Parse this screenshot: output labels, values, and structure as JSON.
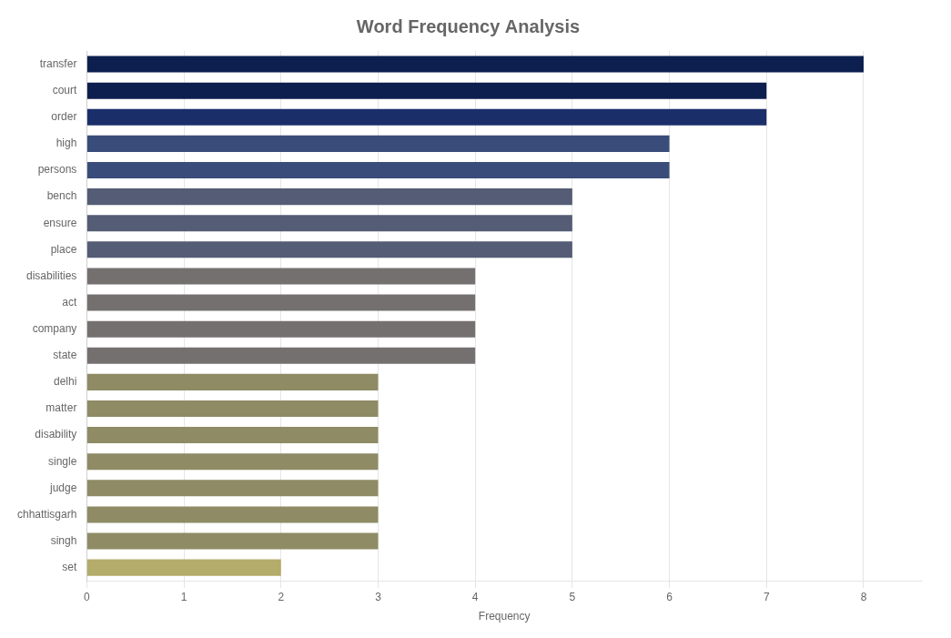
{
  "chart_data": {
    "type": "bar",
    "orientation": "horizontal",
    "title": "Word Frequency Analysis",
    "xlabel": "Frequency",
    "categories": [
      "transfer",
      "court",
      "order",
      "high",
      "persons",
      "bench",
      "ensure",
      "place",
      "disabilities",
      "act",
      "company",
      "state",
      "delhi",
      "matter",
      "disability",
      "single",
      "judge",
      "chhattisgarh",
      "singh",
      "set"
    ],
    "values": [
      8,
      7,
      7,
      6,
      6,
      5,
      5,
      5,
      4,
      4,
      4,
      4,
      3,
      3,
      3,
      3,
      3,
      3,
      3,
      2
    ],
    "colors": [
      "#0d1f4e",
      "#0d1f4e",
      "#1a2f6a",
      "#3a4d7a",
      "#3a4d7a",
      "#545d75",
      "#545d75",
      "#545d75",
      "#757070",
      "#757070",
      "#757070",
      "#757070",
      "#8e8b65",
      "#8e8b65",
      "#8e8b65",
      "#8e8b65",
      "#8e8b65",
      "#8e8b65",
      "#8e8b65",
      "#b3ac6a"
    ],
    "xlim": [
      0,
      8.6
    ],
    "xticks": [
      0,
      1,
      2,
      3,
      4,
      5,
      6,
      7,
      8
    ],
    "grid": true
  }
}
